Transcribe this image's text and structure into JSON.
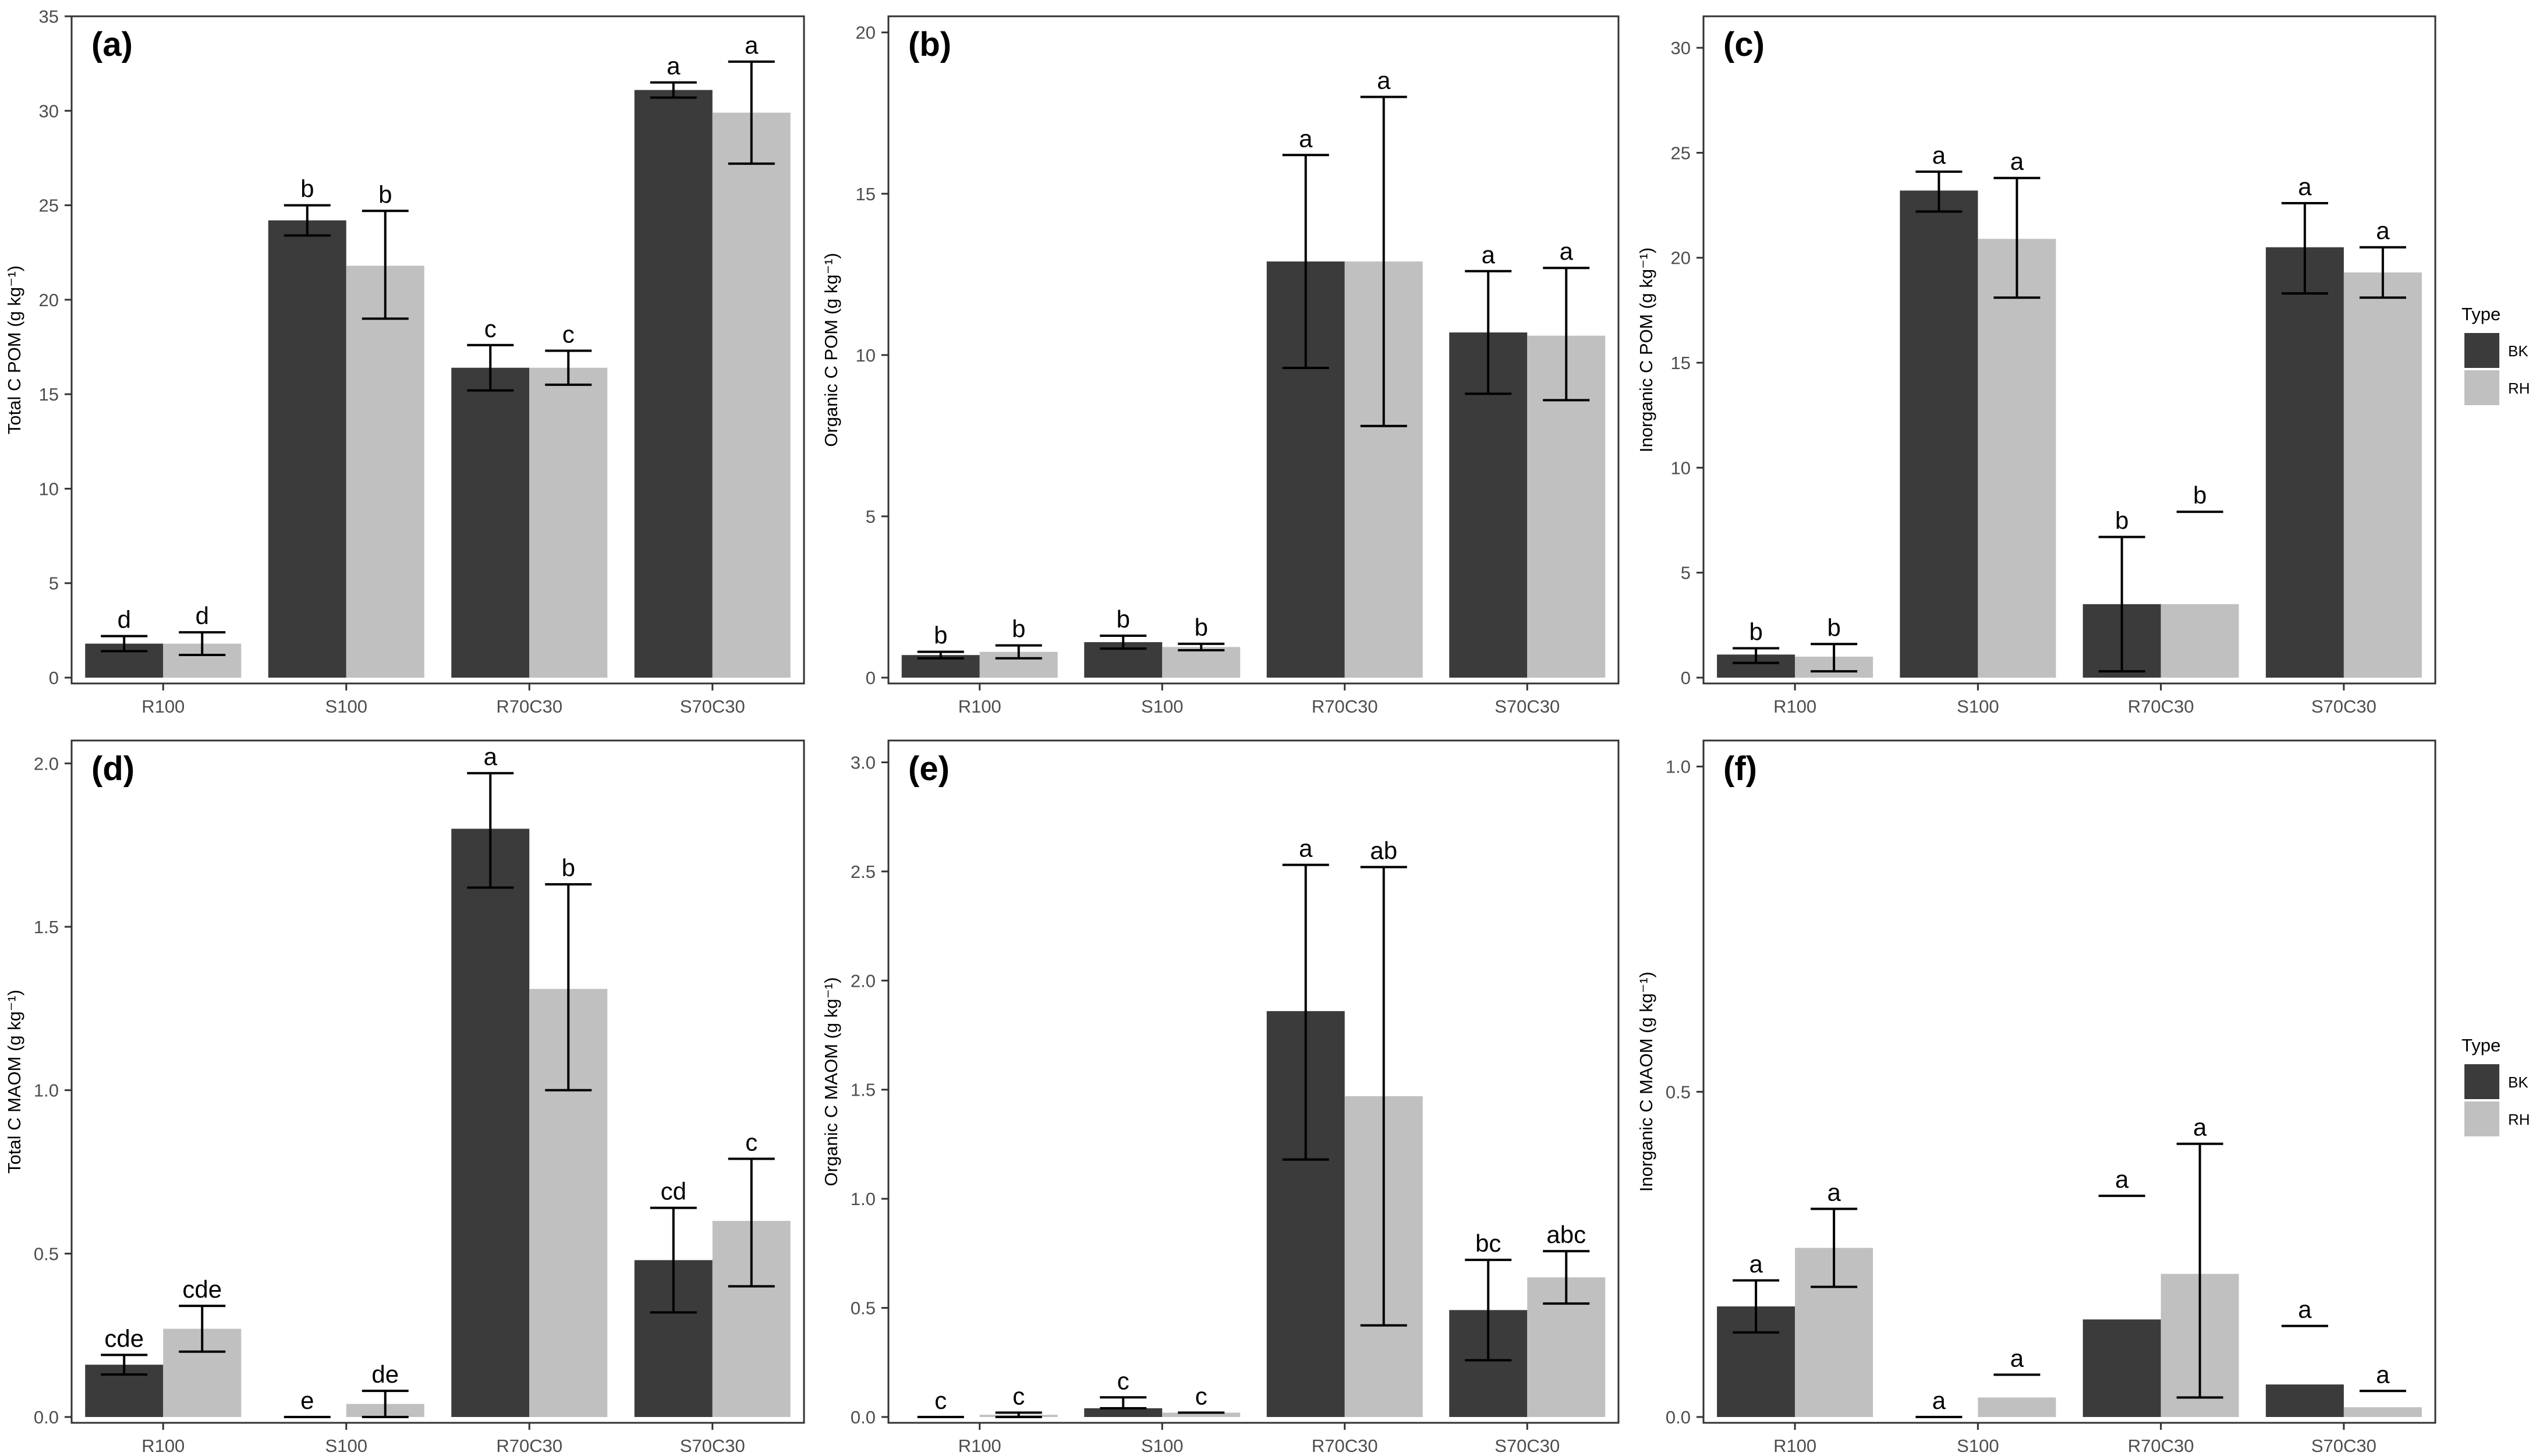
{
  "categories": [
    "R100",
    "S100",
    "R70C30",
    "S70C30"
  ],
  "colors": {
    "BK": "#3b3b3b",
    "RH": "#c0c0c0",
    "panel_border": "#333333",
    "text": "#000000",
    "tick_text": "#4d4d4d"
  },
  "chart_data": [
    {
      "type": "bar",
      "panel": "(a)",
      "ylabel": "Total C POM (g kg⁻¹)",
      "ylim": [
        0,
        35
      ],
      "yticks": [
        0,
        5,
        10,
        15,
        20,
        25,
        30,
        35
      ],
      "ytick_labels": [
        "0",
        "5",
        "10",
        "15",
        "20",
        "25",
        "30",
        "35"
      ],
      "categories": [
        "R100",
        "S100",
        "R70C30",
        "S70C30"
      ],
      "series": [
        {
          "name": "BK",
          "values": [
            1.8,
            24.2,
            16.4,
            31.1
          ],
          "err_low": [
            1.4,
            23.4,
            15.2,
            30.7
          ],
          "err_high": [
            2.2,
            25.0,
            17.6,
            31.5
          ],
          "letters": [
            "d",
            "b",
            "c",
            "a"
          ]
        },
        {
          "name": "RH",
          "values": [
            1.8,
            21.8,
            16.4,
            29.9
          ],
          "err_low": [
            1.2,
            19.0,
            15.5,
            27.2
          ],
          "err_high": [
            2.4,
            24.7,
            17.3,
            32.6
          ],
          "letters": [
            "d",
            "b",
            "c",
            "a"
          ]
        }
      ]
    },
    {
      "type": "bar",
      "panel": "(b)",
      "ylabel": "Organic C POM (g kg⁻¹)",
      "ylim": [
        0,
        20.5
      ],
      "yticks": [
        0,
        5,
        10,
        15,
        20
      ],
      "ytick_labels": [
        "0",
        "5",
        "10",
        "15",
        "20"
      ],
      "categories": [
        "R100",
        "S100",
        "R70C30",
        "S70C30"
      ],
      "series": [
        {
          "name": "BK",
          "values": [
            0.7,
            1.1,
            12.9,
            10.7
          ],
          "err_low": [
            0.6,
            0.9,
            9.6,
            8.8
          ],
          "err_high": [
            0.8,
            1.3,
            16.2,
            12.6
          ],
          "letters": [
            "b",
            "b",
            "a",
            "a"
          ]
        },
        {
          "name": "RH",
          "values": [
            0.8,
            0.95,
            12.9,
            10.6
          ],
          "err_low": [
            0.6,
            0.85,
            7.8,
            8.6
          ],
          "err_high": [
            1.0,
            1.05,
            18.0,
            12.7
          ],
          "letters": [
            "b",
            "b",
            "a",
            "a"
          ]
        }
      ]
    },
    {
      "type": "bar",
      "panel": "(c)",
      "ylabel": "Inorganic C POM (g kg⁻¹)",
      "ylim": [
        0,
        31.5
      ],
      "yticks": [
        0,
        5,
        10,
        15,
        20,
        25,
        30
      ],
      "ytick_labels": [
        "0",
        "5",
        "10",
        "15",
        "20",
        "25",
        "30"
      ],
      "categories": [
        "R100",
        "S100",
        "R70C30",
        "S70C30"
      ],
      "series": [
        {
          "name": "BK",
          "values": [
            1.1,
            23.2,
            3.5,
            20.5
          ],
          "err_low": [
            0.7,
            22.2,
            0.3,
            18.3
          ],
          "err_high": [
            1.4,
            24.1,
            6.7,
            22.6
          ],
          "letters": [
            "b",
            "a",
            "b",
            "a"
          ]
        },
        {
          "name": "RH",
          "values": [
            1.0,
            20.9,
            3.5,
            19.3
          ],
          "err_low": [
            0.3,
            18.1,
            7.9,
            18.1
          ],
          "err_high": [
            1.6,
            23.8,
            7.9,
            20.5
          ],
          "letters": [
            "b",
            "a",
            "b",
            "a"
          ]
        }
      ]
    },
    {
      "type": "bar",
      "panel": "(d)",
      "ylabel": "Total C MAOM (g kg⁻¹)",
      "ylim": [
        0,
        2.07
      ],
      "yticks": [
        0,
        0.5,
        1.0,
        1.5,
        2.0
      ],
      "ytick_labels": [
        "0.0",
        "0.5",
        "1.0",
        "1.5",
        "2.0"
      ],
      "categories": [
        "R100",
        "S100",
        "R70C30",
        "S70C30"
      ],
      "series": [
        {
          "name": "BK",
          "values": [
            0.16,
            0.0,
            1.8,
            0.48
          ],
          "err_low": [
            0.13,
            0.0,
            1.62,
            0.32
          ],
          "err_high": [
            0.19,
            0.0,
            1.97,
            0.64
          ],
          "letters": [
            "cde",
            "e",
            "a",
            "cd"
          ]
        },
        {
          "name": "RH",
          "values": [
            0.27,
            0.04,
            1.31,
            0.6
          ],
          "err_low": [
            0.2,
            0.0,
            1.0,
            0.4
          ],
          "err_high": [
            0.34,
            0.08,
            1.63,
            0.79
          ],
          "letters": [
            "cde",
            "de",
            "b",
            "c"
          ]
        }
      ]
    },
    {
      "type": "bar",
      "panel": "(e)",
      "ylabel": "Organic C MAOM (g kg⁻¹)",
      "ylim": [
        0,
        3.1
      ],
      "yticks": [
        0,
        0.5,
        1.0,
        1.5,
        2.0,
        2.5,
        3.0
      ],
      "ytick_labels": [
        "0.0",
        "0.5",
        "1.0",
        "1.5",
        "2.0",
        "2.5",
        "3.0"
      ],
      "categories": [
        "R100",
        "S100",
        "R70C30",
        "S70C30"
      ],
      "series": [
        {
          "name": "BK",
          "values": [
            0.0,
            0.04,
            1.86,
            0.49
          ],
          "err_low": [
            0.0,
            0.04,
            1.18,
            0.26
          ],
          "err_high": [
            0.0,
            0.09,
            2.53,
            0.72
          ],
          "letters": [
            "c",
            "c",
            "a",
            "bc"
          ]
        },
        {
          "name": "RH",
          "values": [
            0.01,
            0.02,
            1.47,
            0.64
          ],
          "err_low": [
            0.0,
            0.02,
            0.42,
            0.52
          ],
          "err_high": [
            0.02,
            0.02,
            2.52,
            0.76
          ],
          "letters": [
            "c",
            "c",
            "ab",
            "abc"
          ]
        }
      ]
    },
    {
      "type": "bar",
      "panel": "(f)",
      "ylabel": "Inorganic C MAOM (g kg⁻¹)",
      "ylim": [
        0,
        1.04
      ],
      "yticks": [
        0,
        0.5,
        1.0
      ],
      "ytick_labels": [
        "0.0",
        "0.5",
        "1.0"
      ],
      "categories": [
        "R100",
        "S100",
        "R70C30",
        "S70C30"
      ],
      "series": [
        {
          "name": "BK",
          "values": [
            0.17,
            0.0,
            0.15,
            0.05
          ],
          "err_low": [
            0.13,
            0.0,
            0.34,
            0.14
          ],
          "err_high": [
            0.21,
            0.0,
            0.34,
            0.14
          ],
          "letters": [
            "a",
            "a",
            "a",
            "a"
          ]
        },
        {
          "name": "RH",
          "values": [
            0.26,
            0.03,
            0.22,
            0.015
          ],
          "err_low": [
            0.2,
            0.065,
            0.03,
            0.04
          ],
          "err_high": [
            0.32,
            0.065,
            0.42,
            0.04
          ],
          "letters": [
            "a",
            "a",
            "a",
            "a"
          ]
        }
      ]
    }
  ],
  "legend": {
    "title": "Type",
    "items": [
      {
        "label": "BK"
      },
      {
        "label": "RH"
      }
    ]
  }
}
